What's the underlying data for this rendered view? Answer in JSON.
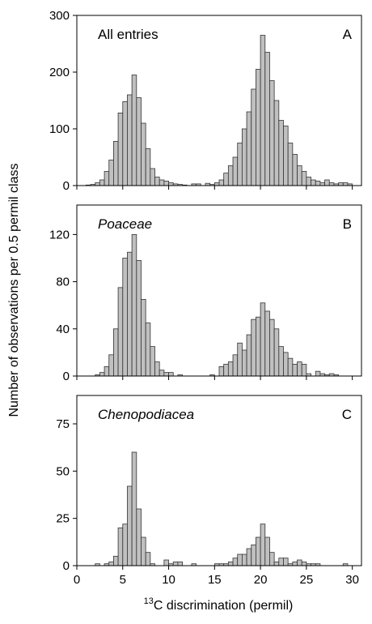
{
  "chart_data": [
    {
      "type": "histogram",
      "title": "All entries",
      "panel_label": "A",
      "title_italic": false,
      "color": "#c0c0c0",
      "bins": [
        1,
        1.5,
        2,
        2.5,
        3,
        3.5,
        4,
        4.5,
        5,
        5.5,
        6,
        6.5,
        7,
        7.5,
        8,
        8.5,
        9,
        9.5,
        10,
        10.5,
        11,
        11.5,
        12,
        12.5,
        13,
        13.5,
        14,
        14.5,
        15,
        15.5,
        16,
        16.5,
        17,
        17.5,
        18,
        18.5,
        19,
        19.5,
        20,
        20.5,
        21,
        21.5,
        22,
        22.5,
        23,
        23.5,
        24,
        24.5,
        25,
        25.5,
        26,
        26.5,
        27,
        27.5,
        28,
        28.5,
        29,
        29.5,
        30
      ],
      "values": [
        1,
        2,
        5,
        10,
        25,
        45,
        78,
        128,
        148,
        160,
        195,
        155,
        110,
        65,
        30,
        15,
        10,
        8,
        5,
        3,
        2,
        1,
        0,
        3,
        3,
        0,
        4,
        2,
        5,
        10,
        22,
        35,
        50,
        75,
        100,
        130,
        170,
        205,
        265,
        235,
        185,
        150,
        115,
        105,
        75,
        55,
        35,
        25,
        15,
        10,
        8,
        5,
        10,
        5,
        3,
        5,
        5,
        3
      ],
      "xlim": [
        0,
        31
      ],
      "xticks": [
        0,
        5,
        10,
        15,
        20,
        25,
        30
      ],
      "show_xtick_labels": false,
      "ylim": [
        0,
        300
      ],
      "yticks": [
        0,
        100,
        200,
        300
      ]
    },
    {
      "type": "histogram",
      "title": "Poaceae",
      "panel_label": "B",
      "title_italic": true,
      "color": "#c0c0c0",
      "y_label": "Number of observations per 0.5 permil class",
      "bins": [
        1,
        1.5,
        2,
        2.5,
        3,
        3.5,
        4,
        4.5,
        5,
        5.5,
        6,
        6.5,
        7,
        7.5,
        8,
        8.5,
        9,
        9.5,
        10,
        10.5,
        11,
        11.5,
        12,
        12.5,
        13,
        13.5,
        14,
        14.5,
        15,
        15.5,
        16,
        16.5,
        17,
        17.5,
        18,
        18.5,
        19,
        19.5,
        20,
        20.5,
        21,
        21.5,
        22,
        22.5,
        23,
        23.5,
        24,
        24.5,
        25,
        25.5,
        26,
        26.5,
        27,
        27.5,
        28,
        28.5,
        29,
        29.5,
        30
      ],
      "values": [
        0,
        0,
        1,
        3,
        8,
        18,
        40,
        75,
        100,
        105,
        120,
        98,
        65,
        45,
        25,
        12,
        5,
        3,
        3,
        0,
        1,
        0,
        0,
        0,
        0,
        0,
        0,
        1,
        0,
        8,
        10,
        12,
        18,
        28,
        22,
        35,
        48,
        50,
        62,
        55,
        48,
        40,
        25,
        20,
        15,
        10,
        12,
        10,
        2,
        0,
        4,
        2,
        1,
        2,
        1,
        0,
        0,
        0
      ],
      "xlim": [
        0,
        31
      ],
      "xticks": [
        0,
        5,
        10,
        15,
        20,
        25,
        30
      ],
      "show_xtick_labels": false,
      "ylim": [
        0,
        145
      ],
      "yticks": [
        0,
        40,
        80,
        120
      ]
    },
    {
      "type": "histogram",
      "title": "Chenopodiacea",
      "panel_label": "C",
      "title_italic": true,
      "color": "#c0c0c0",
      "x_label_sup": "13",
      "x_label": "C discrimination (permil)",
      "bins": [
        1,
        1.5,
        2,
        2.5,
        3,
        3.5,
        4,
        4.5,
        5,
        5.5,
        6,
        6.5,
        7,
        7.5,
        8,
        8.5,
        9,
        9.5,
        10,
        10.5,
        11,
        11.5,
        12,
        12.5,
        13,
        13.5,
        14,
        14.5,
        15,
        15.5,
        16,
        16.5,
        17,
        17.5,
        18,
        18.5,
        19,
        19.5,
        20,
        20.5,
        21,
        21.5,
        22,
        22.5,
        23,
        23.5,
        24,
        24.5,
        25,
        25.5,
        26,
        26.5,
        27,
        27.5,
        28,
        28.5,
        29,
        29.5,
        30
      ],
      "values": [
        0,
        0,
        1,
        0,
        1,
        2,
        5,
        20,
        22,
        42,
        60,
        30,
        15,
        7,
        1,
        0,
        0,
        3,
        1,
        2,
        2,
        0,
        0,
        1,
        0,
        0,
        0,
        0,
        1,
        1,
        1,
        2,
        4,
        6,
        6,
        9,
        11,
        15,
        22,
        15,
        7,
        2,
        4,
        4,
        1,
        2,
        3,
        2,
        1,
        1,
        1,
        0,
        0,
        0,
        0,
        0,
        1,
        0
      ],
      "xlim": [
        0,
        31
      ],
      "xticks": [
        0,
        5,
        10,
        15,
        20,
        25,
        30
      ],
      "show_xtick_labels": true,
      "ylim": [
        0,
        90
      ],
      "yticks": [
        0,
        25,
        50,
        75
      ]
    }
  ]
}
